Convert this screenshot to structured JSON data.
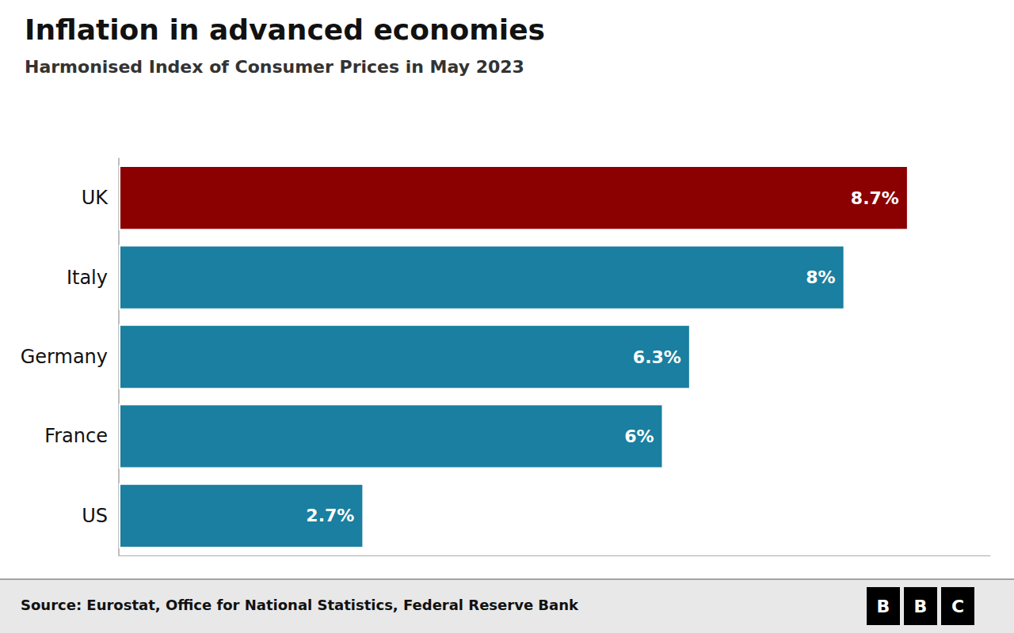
{
  "chart_data": {
    "type": "bar",
    "orientation": "horizontal",
    "title": "Inflation in advanced economies",
    "subtitle": "Harmonised Index of Consumer Prices in May 2023",
    "source": "Source: Eurostat, Office for National Statistics, Federal Reserve Bank",
    "logo": [
      "B",
      "B",
      "C"
    ],
    "categories": [
      "US",
      "France",
      "Germany",
      "Italy",
      "UK"
    ],
    "values": [
      2.7,
      6.0,
      6.3,
      8.0,
      8.7
    ],
    "value_labels": [
      "2.7%",
      "6%",
      "6.3%",
      "8%",
      "8.7%"
    ],
    "colors": [
      "#1a7fa0",
      "#1a7fa0",
      "#1a7fa0",
      "#1a7fa0",
      "#8b0000"
    ],
    "xlim": [
      0,
      9.6
    ],
    "data_labels": true,
    "tick_labels": "y",
    "grid": false
  }
}
